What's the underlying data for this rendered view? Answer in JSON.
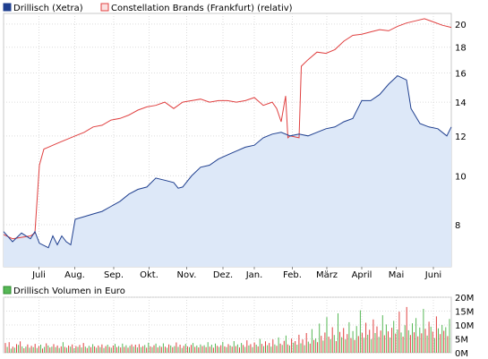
{
  "chart_data": [
    {
      "type": "line",
      "scale": "log",
      "legend": [
        {
          "name": "Drillisch (Xetra)",
          "color": "#1f3f8f"
        },
        {
          "name": "Constellation Brands (Frankfurt) (relativ)",
          "color": "#e04040"
        }
      ],
      "legend_position": "top-left",
      "y_axis_position": "right",
      "ylim": [
        6.6,
        21
      ],
      "yticks": [
        8,
        10,
        12,
        14,
        16,
        18,
        20
      ],
      "xlim": [
        0,
        100
      ],
      "xticks": [
        {
          "label": "Juli",
          "x": 7.9
        },
        {
          "label": "Aug.",
          "x": 15.9
        },
        {
          "label": "Sep.",
          "x": 24.6
        },
        {
          "label": "Okt.",
          "x": 32.5
        },
        {
          "label": "Nov.",
          "x": 40.9
        },
        {
          "label": "Dez.",
          "x": 49.0
        },
        {
          "label": "Jan.",
          "x": 56.0
        },
        {
          "label": "Feb.",
          "x": 64.5
        },
        {
          "label": "März",
          "x": 72.2
        },
        {
          "label": "April",
          "x": 80.0
        },
        {
          "label": "Mai",
          "x": 87.7
        },
        {
          "label": "Juni",
          "x": 96.0
        }
      ],
      "grid": true,
      "series": [
        {
          "name": "Drillisch (Xetra)",
          "color": "#1f3f8f",
          "fill": "#dde8f8",
          "points": [
            [
              0,
              7.75
            ],
            [
              2,
              7.4
            ],
            [
              4,
              7.7
            ],
            [
              6,
              7.5
            ],
            [
              7,
              7.75
            ],
            [
              8,
              7.35
            ],
            [
              10,
              7.2
            ],
            [
              11,
              7.6
            ],
            [
              12,
              7.3
            ],
            [
              13,
              7.6
            ],
            [
              14,
              7.4
            ],
            [
              15,
              7.3
            ],
            [
              16,
              8.2
            ],
            [
              18,
              8.3
            ],
            [
              20,
              8.4
            ],
            [
              22,
              8.5
            ],
            [
              24,
              8.7
            ],
            [
              26,
              8.9
            ],
            [
              28,
              9.2
            ],
            [
              30,
              9.4
            ],
            [
              32,
              9.5
            ],
            [
              34,
              9.9
            ],
            [
              36,
              9.8
            ],
            [
              38,
              9.7
            ],
            [
              39,
              9.45
            ],
            [
              40,
              9.5
            ],
            [
              42,
              10.0
            ],
            [
              44,
              10.4
            ],
            [
              46,
              10.5
            ],
            [
              48,
              10.8
            ],
            [
              50,
              11.0
            ],
            [
              52,
              11.2
            ],
            [
              54,
              11.4
            ],
            [
              56,
              11.5
            ],
            [
              58,
              11.9
            ],
            [
              60,
              12.1
            ],
            [
              62,
              12.2
            ],
            [
              64,
              12.0
            ],
            [
              66,
              12.1
            ],
            [
              68,
              12.0
            ],
            [
              70,
              12.2
            ],
            [
              72,
              12.4
            ],
            [
              74,
              12.5
            ],
            [
              76,
              12.8
            ],
            [
              78,
              13.0
            ],
            [
              80,
              14.1
            ],
            [
              82,
              14.1
            ],
            [
              84,
              14.5
            ],
            [
              86,
              15.2
            ],
            [
              88,
              15.8
            ],
            [
              90,
              15.5
            ],
            [
              91,
              13.6
            ],
            [
              93,
              12.7
            ],
            [
              95,
              12.5
            ],
            [
              97,
              12.4
            ],
            [
              99,
              12.0
            ],
            [
              100,
              12.5
            ]
          ]
        },
        {
          "name": "Constellation Brands (Frankfurt) (relativ)",
          "color": "#e04040",
          "points": [
            [
              0,
              7.65
            ],
            [
              2,
              7.5
            ],
            [
              4,
              7.55
            ],
            [
              6,
              7.6
            ],
            [
              7,
              7.7
            ],
            [
              8,
              10.5
            ],
            [
              9,
              11.3
            ],
            [
              10,
              11.4
            ],
            [
              12,
              11.6
            ],
            [
              14,
              11.8
            ],
            [
              16,
              12.0
            ],
            [
              18,
              12.2
            ],
            [
              20,
              12.5
            ],
            [
              22,
              12.6
            ],
            [
              24,
              12.9
            ],
            [
              26,
              13.0
            ],
            [
              28,
              13.2
            ],
            [
              30,
              13.5
            ],
            [
              32,
              13.7
            ],
            [
              34,
              13.8
            ],
            [
              36,
              14.0
            ],
            [
              38,
              13.6
            ],
            [
              40,
              14.0
            ],
            [
              42,
              14.1
            ],
            [
              44,
              14.2
            ],
            [
              46,
              14.0
            ],
            [
              48,
              14.1
            ],
            [
              50,
              14.1
            ],
            [
              52,
              14.0
            ],
            [
              54,
              14.1
            ],
            [
              56,
              14.3
            ],
            [
              58,
              13.8
            ],
            [
              60,
              14.0
            ],
            [
              61,
              13.6
            ],
            [
              62,
              12.8
            ],
            [
              63,
              14.4
            ],
            [
              63.5,
              11.9
            ],
            [
              64,
              12.0
            ],
            [
              66,
              11.9
            ],
            [
              66.5,
              16.5
            ],
            [
              68,
              17.0
            ],
            [
              70,
              17.6
            ],
            [
              72,
              17.5
            ],
            [
              74,
              17.8
            ],
            [
              76,
              18.5
            ],
            [
              78,
              19.0
            ],
            [
              80,
              19.1
            ],
            [
              82,
              19.3
            ],
            [
              84,
              19.5
            ],
            [
              86,
              19.4
            ],
            [
              88,
              19.8
            ],
            [
              90,
              20.1
            ],
            [
              92,
              20.3
            ],
            [
              94,
              20.5
            ],
            [
              96,
              20.2
            ],
            [
              98,
              19.9
            ],
            [
              100,
              19.7
            ]
          ]
        }
      ]
    },
    {
      "type": "bar",
      "legend": [
        {
          "name": "Drillisch Volumen in Euro",
          "color": "#56b856"
        }
      ],
      "y_axis_position": "right",
      "ylim": [
        0,
        20000000
      ],
      "yticks": [
        {
          "value": 0,
          "label": "0M"
        },
        {
          "value": 5000000,
          "label": "5M"
        },
        {
          "value": 10000000,
          "label": "10M"
        },
        {
          "value": 15000000,
          "label": "15M"
        },
        {
          "value": 20000000,
          "label": "20M"
        }
      ],
      "colors": [
        "#e04040",
        "#56b856"
      ],
      "values": [
        3.5,
        2.1,
        3.8,
        1.5,
        2.2,
        1.8,
        3.1,
        2.8,
        4.1,
        2.3,
        1.6,
        2.2,
        3.0,
        1.8,
        2.5,
        2.0,
        3.2,
        1.7,
        2.4,
        2.9,
        1.5,
        2.1,
        3.4,
        2.6,
        1.9,
        2.2,
        3.1,
        2.0,
        2.6,
        1.7,
        2.3,
        3.8,
        2.1,
        1.8,
        2.6,
        2.2,
        3.0,
        1.6,
        2.4,
        2.1,
        2.8,
        1.9,
        3.5,
        2.2,
        1.7,
        2.5,
        2.0,
        3.1,
        2.3,
        1.8,
        2.6,
        2.0,
        3.0,
        1.7,
        2.4,
        2.9,
        2.1,
        1.8,
        2.6,
        3.2,
        2.0,
        2.4,
        1.9,
        3.3,
        2.1,
        2.7,
        1.8,
        2.5,
        3.0,
        2.2,
        2.9,
        1.9,
        3.1,
        2.0,
        2.4,
        2.8,
        1.8,
        3.6,
        2.3,
        2.0,
        2.7,
        3.3,
        1.9,
        2.5,
        2.1,
        3.4,
        2.2,
        1.8,
        3.0,
        2.6,
        2.0,
        2.4,
        3.7,
        2.1,
        2.9,
        1.7,
        2.5,
        3.2,
        2.3,
        2.0,
        2.8,
        3.5,
        2.1,
        2.6,
        1.9,
        3.0,
        2.4,
        2.7,
        2.0,
        3.8,
        2.2,
        2.9,
        1.8,
        3.3,
        2.5,
        2.1,
        2.7,
        3.9,
        2.3,
        2.0,
        3.1,
        2.6,
        2.2,
        4.2,
        2.4,
        3.0,
        1.9,
        3.5,
        2.8,
        2.1,
        4.5,
        2.6,
        3.1,
        2.0,
        3.7,
        2.9,
        2.3,
        5.0,
        3.2,
        2.4,
        4.1,
        2.7,
        3.5,
        2.2,
        4.8,
        3.0,
        2.5,
        5.5,
        3.3,
        2.8,
        4.3,
        6.2,
        3.0,
        2.6,
        5.1,
        3.6,
        4.2,
        2.9,
        6.5,
        3.4,
        4.8,
        2.7,
        7.1,
        4.0,
        3.3,
        8.5,
        4.6,
        5.2,
        3.8,
        10.5,
        6.1,
        4.4,
        7.3,
        12.8,
        5.8,
        4.9,
        9.2,
        6.4,
        4.2,
        14.2,
        7.5,
        5.6,
        8.9,
        4.8,
        6.7,
        11.0,
        5.3,
        7.8,
        4.6,
        9.6,
        6.0,
        15.3,
        7.2,
        5.4,
        10.8,
        6.5,
        8.3,
        4.9,
        12.0,
        7.1,
        9.5,
        5.7,
        8.0,
        13.5,
        6.3,
        10.2,
        7.7,
        5.5,
        9.0,
        11.5,
        6.9,
        8.4,
        14.8,
        7.3,
        5.8,
        9.9,
        16.5,
        8.1,
        6.4,
        10.6,
        7.4,
        12.5,
        5.9,
        9.1,
        7.0,
        15.8,
        8.6,
        6.2,
        11.2,
        9.4,
        7.6,
        5.3,
        13.1,
        8.8,
        6.7,
        10.0,
        7.9,
        9.2,
        6.0,
        12.2
      ],
      "value_unit": "M"
    }
  ]
}
